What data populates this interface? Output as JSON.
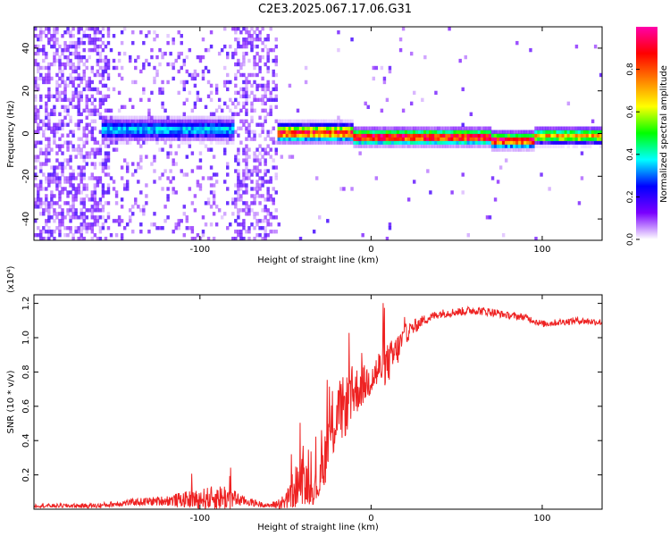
{
  "figure": {
    "title": "C2E3.2025.067.17.06.G31"
  },
  "chart_data": [
    {
      "type": "heatmap",
      "xlabel": "Height of straight line (km)",
      "ylabel": "Frequency (Hz)",
      "xlim": [
        -197,
        135
      ],
      "ylim": [
        -50,
        50
      ],
      "xticks": [
        -100,
        0,
        100
      ],
      "yticks": [
        -40,
        -20,
        0,
        20,
        40
      ],
      "colorbar": {
        "label": "Normalized spectral amplitude",
        "range": [
          0,
          1
        ],
        "ticks": [
          "0.0",
          "0.2",
          "0.4",
          "0.6",
          "0.8"
        ],
        "tick_values": [
          0,
          0.2,
          0.4,
          0.6,
          0.8
        ],
        "colormap": [
          "#ffffff",
          "#7a00ff",
          "#0000ff",
          "#00ffff",
          "#00ff00",
          "#ffff00",
          "#ff8000",
          "#ff0000",
          "#ff00aa"
        ]
      },
      "regions": [
        {
          "x_range": [
            -197,
            -152
          ],
          "pattern": "noise",
          "density": 0.9
        },
        {
          "x_range": [
            -152,
            -80
          ],
          "pattern": "noise",
          "density": 0.25
        },
        {
          "x_range": [
            -80,
            -54
          ],
          "pattern": "noise",
          "density": 0.75
        },
        {
          "x_range": [
            -54,
            135
          ],
          "pattern": "noise",
          "density": 0.02
        }
      ],
      "carrier_band": [
        {
          "x_range": [
            -157,
            -80
          ],
          "center_hz": 2,
          "width_hz": 5,
          "peak": 0.35
        },
        {
          "x_range": [
            -54,
            -10
          ],
          "center_hz": 0.5,
          "width_hz": 4,
          "peak": 0.85
        },
        {
          "x_range": [
            -10,
            70
          ],
          "center_hz": -1.5,
          "width_hz": 3.5,
          "peak": 0.95
        },
        {
          "x_range": [
            70,
            95
          ],
          "center_hz": -3,
          "width_hz": 3.5,
          "peak": 0.92
        },
        {
          "x_range": [
            95,
            135
          ],
          "center_hz": -1,
          "width_hz": 3.5,
          "peak": 0.7
        }
      ]
    },
    {
      "type": "line",
      "xlabel": "Height of straight line (km)",
      "ylabel": "SNR (10 * v/v)",
      "multiplier_label": "(x10⁴)",
      "xlim": [
        -197,
        135
      ],
      "ylim": [
        0,
        1.25
      ],
      "xticks": [
        -100,
        0,
        100
      ],
      "yticks": [
        0.2,
        0.4,
        0.6,
        0.8,
        1.0,
        1.2
      ],
      "ytick_labels": [
        "0.2",
        "0.4",
        "0.6",
        "0.8",
        "1.0",
        "1.2"
      ],
      "series": [
        {
          "color": "#ee2222",
          "x": [
            -197,
            -160,
            -140,
            -120,
            -100,
            -85,
            -75,
            -60,
            -50,
            -45,
            -40,
            -35,
            -30,
            -25,
            -20,
            -15,
            -10,
            -5,
            0,
            5,
            10,
            15,
            20,
            30,
            40,
            50,
            60,
            70,
            80,
            90,
            95,
            100,
            110,
            120,
            135
          ],
          "y": [
            0.02,
            0.02,
            0.04,
            0.05,
            0.06,
            0.07,
            0.05,
            0.02,
            0.04,
            0.12,
            0.18,
            0.1,
            0.15,
            0.4,
            0.55,
            0.6,
            0.68,
            0.72,
            0.76,
            0.82,
            0.85,
            0.92,
            1.02,
            1.1,
            1.14,
            1.15,
            1.16,
            1.15,
            1.13,
            1.12,
            1.1,
            1.08,
            1.09,
            1.1,
            1.09
          ],
          "noise": [
            0.01,
            0.015,
            0.02,
            0.03,
            0.06,
            0.08,
            0.03,
            0.01,
            0.05,
            0.12,
            0.15,
            0.08,
            0.1,
            0.2,
            0.2,
            0.18,
            0.15,
            0.12,
            0.1,
            0.12,
            0.12,
            0.1,
            0.06,
            0.03,
            0.025,
            0.025,
            0.025,
            0.025,
            0.02,
            0.02,
            0.02,
            0.02,
            0.02,
            0.02,
            0.02
          ]
        }
      ]
    }
  ]
}
